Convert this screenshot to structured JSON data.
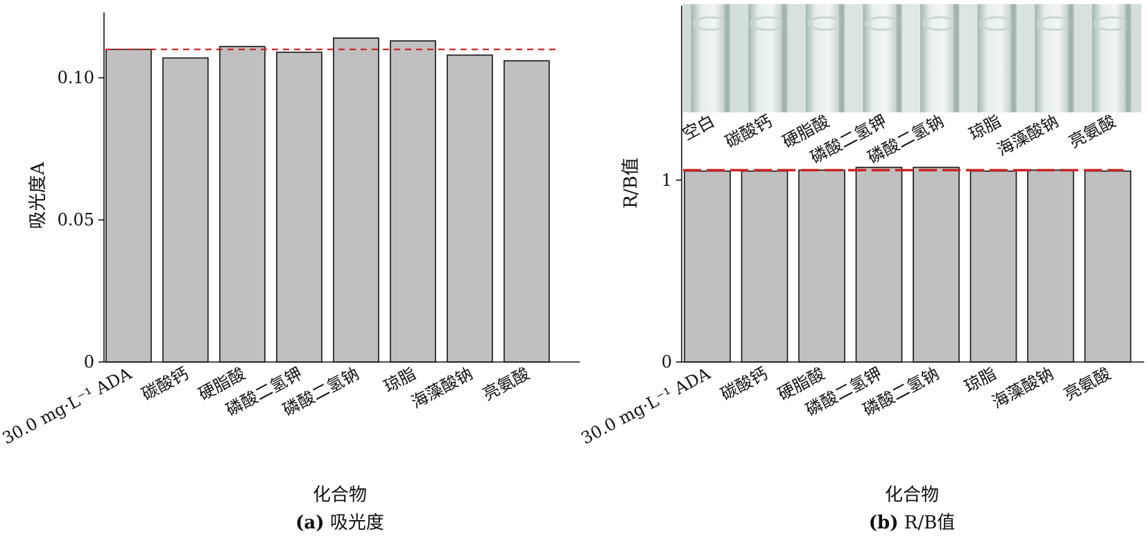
{
  "chart_data": [
    {
      "type": "bar",
      "panel_caption": "(a) 吸光度",
      "caption_letter": "(a)",
      "caption_text": "吸光度",
      "xlabel": "化合物",
      "ylabel": "吸光度A",
      "categories": [
        "30.0 mg·L⁻¹ ADA",
        "碳酸钙",
        "硬脂酸",
        "磷酸二氢钾",
        "磷酸二氢钠",
        "琼脂",
        "海藻酸钠",
        "亮氨酸"
      ],
      "values": [
        0.11,
        0.107,
        0.111,
        0.109,
        0.114,
        0.113,
        0.108,
        0.106
      ],
      "ylim": [
        0,
        0.123
      ],
      "yticks": [
        0,
        0.05,
        0.1
      ],
      "ytick_labels": [
        "0",
        "0.05",
        "0.10"
      ],
      "reference_line": 0.11,
      "reference_color": "#cc2222",
      "bar_color": "#c0c0c0",
      "grid": false
    },
    {
      "type": "bar",
      "panel_caption": "(b) R/B值",
      "caption_letter": "(b)",
      "caption_text": "R/B值",
      "xlabel": "化合物",
      "ylabel": "R/B值",
      "categories": [
        "30.0 mg·L⁻¹ ADA",
        "碳酸钙",
        "硬脂酸",
        "磷酸二氢钾",
        "磷酸二氢钠",
        "琼脂",
        "海藻酸钠",
        "亮氨酸"
      ],
      "values": [
        1.05,
        1.05,
        1.055,
        1.07,
        1.07,
        1.05,
        1.055,
        1.05
      ],
      "ylim": [
        0,
        1.96
      ],
      "yticks": [
        0,
        1
      ],
      "ytick_labels": [
        "0",
        "1"
      ],
      "reference_line": 1.055,
      "reference_color": "#cc2222",
      "bar_color": "#c0c0c0",
      "grid": false,
      "inset_photo_labels": [
        "空白",
        "碳酸钙",
        "硬脂酸",
        "磷酸二氢钾",
        "磷酸二氢钠",
        "琼脂",
        "海藻酸钠",
        "亮氨酸"
      ]
    }
  ]
}
